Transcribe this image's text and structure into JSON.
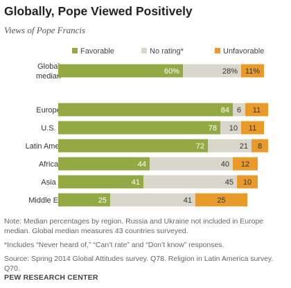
{
  "title": "Globally, Pope Viewed Positively",
  "subtitle": "Views of Pope Francis",
  "colors": {
    "favorable": "#93a944",
    "no_rating": "#d9d7cb",
    "unfavorable": "#e89a2b"
  },
  "chart_data": {
    "type": "bar",
    "orientation": "horizontal",
    "stacked": true,
    "categories": [
      "Global median",
      "Europe",
      "U.S.",
      "Latin America",
      "Africa",
      "Asia",
      "Middle East"
    ],
    "category_labels": [
      [
        "Global",
        "median"
      ],
      [
        "Europe"
      ],
      [
        "U.S."
      ],
      [
        "Latin America"
      ],
      [
        "Africa"
      ],
      [
        "Asia"
      ],
      [
        "Middle East"
      ]
    ],
    "series": [
      {
        "name": "Favorable",
        "values": [
          60,
          84,
          78,
          72,
          44,
          41,
          25
        ],
        "labels": [
          "60%",
          "84",
          "78",
          "72",
          "44",
          "41",
          "25"
        ]
      },
      {
        "name": "No rating*",
        "values": [
          28,
          6,
          10,
          21,
          40,
          45,
          41
        ],
        "labels": [
          "28%",
          "6",
          "10",
          "21",
          "40",
          "45",
          "41"
        ]
      },
      {
        "name": "Unfavorable",
        "values": [
          11,
          11,
          11,
          8,
          12,
          10,
          25
        ],
        "labels": [
          "11%",
          "11",
          "11",
          "8",
          "12",
          "10",
          "25"
        ]
      }
    ],
    "xlim": [
      0,
      100
    ],
    "legend_position": "top",
    "grid": false
  },
  "notes": {
    "note": "Note: Median percentages by region. Russia and Ukraine not included in Europe median. Global median measures 43 countries surveyed.",
    "footnote": "*Includes “Never heard of,” “Can’t rate” and “Don’t know” responses.",
    "source": "Source: Spring 2014 Global Attitudes survey. Q78. Religion in Latin America survey. Q70.",
    "org": "PEW RESEARCH CENTER"
  }
}
